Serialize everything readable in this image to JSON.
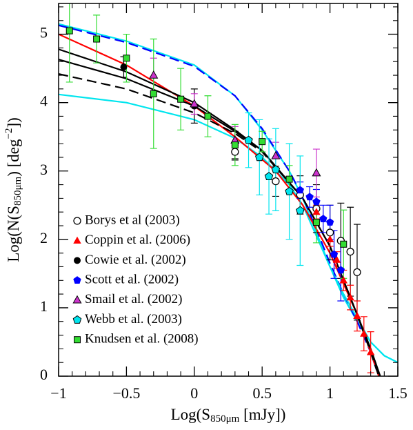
{
  "chart_data": {
    "type": "scatter",
    "xlabel": [
      "Log(S",
      "850μm",
      " [mJy])"
    ],
    "ylabel": [
      "Log(N(S",
      "850μm",
      ") [deg",
      "−2",
      "])"
    ],
    "xlim": [
      -1,
      1.5
    ],
    "ylim": [
      0,
      5.45
    ],
    "xticks": [
      {
        "value": -1,
        "label": "−1"
      },
      {
        "value": -0.5,
        "label": "−0.5"
      },
      0,
      0.5,
      1,
      1.5
    ],
    "yticks": [
      0,
      1,
      2,
      3,
      4,
      5
    ],
    "xminor": [
      -0.9,
      -0.8,
      -0.7,
      -0.6,
      -0.4,
      -0.3,
      -0.2,
      -0.1,
      0.1,
      0.2,
      0.3,
      0.4,
      0.6,
      0.7,
      0.8,
      0.9,
      1.1,
      1.2,
      1.3,
      1.4
    ],
    "yminor": [
      0.2,
      0.4,
      0.6,
      0.8,
      1.2,
      1.4,
      1.6,
      1.8,
      2.2,
      2.4,
      2.6,
      2.8,
      3.2,
      3.4,
      3.6,
      3.8,
      4.2,
      4.4,
      4.6,
      4.8,
      5.2,
      5.4
    ],
    "lines": [
      {
        "color": "#00e5ee",
        "dash": false,
        "x": [
          -1,
          -0.5,
          0,
          0.3,
          0.5,
          0.7,
          0.8,
          0.9,
          1.0,
          1.1,
          1.2,
          1.3,
          1.4,
          1.5
        ],
        "y": [
          5.15,
          4.9,
          4.55,
          4.1,
          3.6,
          3.0,
          2.6,
          2.1,
          1.6,
          1.15,
          0.8,
          0.5,
          0.3,
          0.2
        ]
      },
      {
        "color": "#0000ff",
        "dash": true,
        "x": [
          -1,
          -0.5,
          0,
          0.3,
          0.5,
          0.7,
          0.8,
          0.9,
          1.0,
          1.1,
          1.2,
          1.3,
          1.35
        ],
        "y": [
          5.13,
          4.88,
          4.53,
          4.1,
          3.62,
          3.0,
          2.62,
          2.15,
          1.65,
          1.2,
          0.8,
          0.35,
          0.05
        ]
      },
      {
        "color": "#00e5ee",
        "dash": false,
        "x": [
          -1,
          -0.5,
          0,
          0.3,
          0.5,
          0.7,
          0.8,
          0.9,
          1.0,
          1.1,
          1.2,
          1.3,
          1.4,
          1.5
        ],
        "y": [
          4.12,
          4.0,
          3.75,
          3.48,
          3.2,
          2.8,
          2.5,
          2.05,
          1.6,
          1.2,
          0.85,
          0.5,
          0.3,
          0.2
        ]
      },
      {
        "color": "#ff0000",
        "dash": false,
        "x": [
          -1,
          -0.5,
          0,
          0.3,
          0.6,
          0.8,
          1.0,
          1.1,
          1.2,
          1.3,
          1.36
        ],
        "y": [
          5.0,
          4.55,
          3.95,
          3.5,
          3.0,
          2.5,
          1.8,
          1.35,
          0.9,
          0.35,
          0
        ]
      },
      {
        "color": "#000000",
        "dash": false,
        "x": [
          -1,
          -0.5,
          0,
          0.3,
          0.5,
          0.8,
          1.0,
          1.1,
          1.2,
          1.3,
          1.37
        ],
        "y": [
          4.78,
          4.45,
          4.0,
          3.6,
          3.3,
          2.6,
          1.9,
          1.4,
          0.9,
          0.4,
          0
        ]
      },
      {
        "color": "#000000",
        "dash": false,
        "x": [
          -1,
          -0.5,
          0,
          0.3,
          0.5,
          0.8,
          1.0,
          1.1,
          1.2,
          1.3,
          1.37
        ],
        "y": [
          4.63,
          4.35,
          3.95,
          3.58,
          3.3,
          2.6,
          1.9,
          1.4,
          0.9,
          0.4,
          0
        ]
      },
      {
        "color": "#000000",
        "dash": true,
        "x": [
          -1,
          -0.5,
          0,
          0.3,
          0.5,
          0.8,
          1.0,
          1.1,
          1.2,
          1.3,
          1.36
        ],
        "y": [
          4.42,
          4.2,
          3.85,
          3.55,
          3.28,
          2.6,
          1.9,
          1.4,
          0.9,
          0.35,
          0
        ]
      }
    ],
    "series": [
      {
        "name": "Borys et al (2003)",
        "marker": "circle-open",
        "color": "#000000",
        "x": [
          0.3,
          0.6,
          0.78,
          0.9,
          1.0,
          1.08,
          1.15,
          1.2
        ],
        "values": [
          3.28,
          2.85,
          2.65,
          2.45,
          2.1,
          1.98,
          1.82,
          1.52
        ],
        "errors": [
          0.12,
          0.22,
          0.28,
          0.35,
          0.4,
          0.55,
          0.65,
          0.7
        ]
      },
      {
        "name": "Coppin et al. (2006)",
        "marker": "triangle",
        "color": "#ff0000",
        "x": [
          0.9,
          1.0,
          1.05,
          1.1,
          1.15,
          1.2,
          1.25,
          1.3
        ],
        "values": [
          2.4,
          2.0,
          1.7,
          1.4,
          1.15,
          0.88,
          0.62,
          0.35
        ],
        "errors": [
          0.1,
          0.1,
          0.12,
          0.15,
          0.18,
          0.22,
          0.25,
          0.3
        ]
      },
      {
        "name": "Cowie et al. (2002)",
        "marker": "circle",
        "color": "#000000",
        "x": [
          -0.52,
          0,
          0.3
        ],
        "values": [
          4.52,
          3.95,
          3.38
        ],
        "errors": [
          0.15,
          0.25,
          0.2
        ]
      },
      {
        "name": "Scott et al. (2002)",
        "marker": "pentagon",
        "color": "#0000ff",
        "x": [
          0.78,
          0.85,
          0.9,
          0.95,
          1.0,
          1.03,
          1.08
        ],
        "values": [
          2.72,
          2.62,
          2.55,
          2.3,
          2.25,
          1.78,
          1.55
        ],
        "errors": [
          0.12,
          0.15,
          0.18,
          0.2,
          0.25,
          0.35,
          0.45
        ]
      },
      {
        "name": "Smail et al. (2002)",
        "marker": "triangle-outline",
        "color": "#cc33cc",
        "x": [
          -0.3,
          0,
          0.3,
          0.6,
          0.9
        ],
        "values": [
          4.4,
          3.98,
          3.45,
          3.22,
          2.97
        ],
        "errors": [
          0.25,
          0.15,
          0.2,
          0.2,
          0.35
        ]
      },
      {
        "name": "Webb et al. (2003)",
        "marker": "pentagon-outline",
        "color": "#00e5ee",
        "x": [
          0.4,
          0.48,
          0.55,
          0.6,
          0.7,
          0.78
        ],
        "values": [
          3.45,
          3.2,
          2.92,
          3.02,
          2.7,
          2.42
        ],
        "errors": [
          0.4,
          0.55,
          0.55,
          0.6,
          0.7,
          0.8
        ]
      },
      {
        "name": "Knudsen et al. (2008)",
        "marker": "square",
        "color": "#33dd33",
        "x": [
          -0.92,
          -0.72,
          -0.5,
          -0.3,
          -0.1,
          0.1,
          0.3,
          0.5,
          0.7,
          0.9,
          1.1
        ],
        "values": [
          5.05,
          4.93,
          4.65,
          4.13,
          4.05,
          3.8,
          3.38,
          3.43,
          2.88,
          2.25,
          1.93
        ],
        "errors": [
          0.75,
          0.35,
          0.35,
          0.8,
          0.45,
          0.3,
          0.3,
          0.15,
          0.2,
          0.3,
          0.5
        ]
      }
    ],
    "legend": "lower-left"
  }
}
